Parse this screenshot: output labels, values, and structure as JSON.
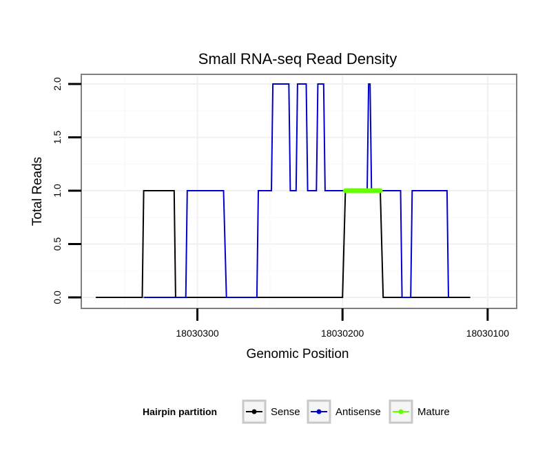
{
  "chart_data": {
    "type": "line",
    "title": "Small RNA-seq Read Density",
    "xlabel": "Genomic Position",
    "ylabel": "Total Reads",
    "xlim": [
      18030380,
      18030080
    ],
    "ylim": [
      0,
      2
    ],
    "x_ticks": [
      18030300,
      18030200,
      18030100
    ],
    "x_tick_labels": [
      "18030300",
      "18030200",
      "18030100"
    ],
    "y_ticks": [
      0,
      0.5,
      1,
      1.5,
      2
    ],
    "y_tick_labels": [
      "0.0",
      "0.5",
      "1.0",
      "1.5",
      "2.0"
    ],
    "grid": true,
    "legend": {
      "title": "Hairpin partition",
      "position": "bottom",
      "entries": [
        {
          "name": "Sense",
          "color": "#000000"
        },
        {
          "name": "Antisense",
          "color": "#0000cc"
        },
        {
          "name": "Mature",
          "color": "#66ff00"
        }
      ]
    },
    "series": [
      {
        "name": "Sense",
        "color": "#000000",
        "x": [
          18030370,
          18030338,
          18030337,
          18030316,
          18030315,
          18030290,
          18030200,
          18030198,
          18030174,
          18030172,
          18030112
        ],
        "y": [
          0,
          0,
          1,
          1,
          0,
          0,
          0,
          1,
          1,
          0,
          0
        ]
      },
      {
        "name": "Antisense",
        "color": "#0000cc",
        "x": [
          18030337,
          18030308,
          18030307,
          18030282,
          18030280,
          18030259,
          18030258,
          18030249,
          18030248,
          18030237,
          18030236,
          18030232,
          18030231,
          18030225,
          18030224,
          18030218,
          18030217,
          18030213,
          18030212,
          18030203,
          18030202,
          18030199,
          18030198,
          18030183,
          18030182,
          18030181,
          18030180,
          18030177,
          18030176,
          18030160,
          18030159,
          18030153,
          18030152,
          18030128,
          18030127
        ],
        "y": [
          0,
          0,
          1,
          1,
          0,
          0,
          1,
          1,
          2,
          2,
          1,
          1,
          2,
          2,
          1,
          1,
          2,
          2,
          1,
          1,
          1,
          1,
          1,
          1,
          2,
          2,
          1,
          1,
          1,
          1,
          0,
          0,
          1,
          1,
          0
        ]
      },
      {
        "name": "Mature",
        "color": "#66ff00",
        "x": [
          18030198,
          18030174
        ],
        "y": [
          1,
          1
        ]
      }
    ]
  }
}
